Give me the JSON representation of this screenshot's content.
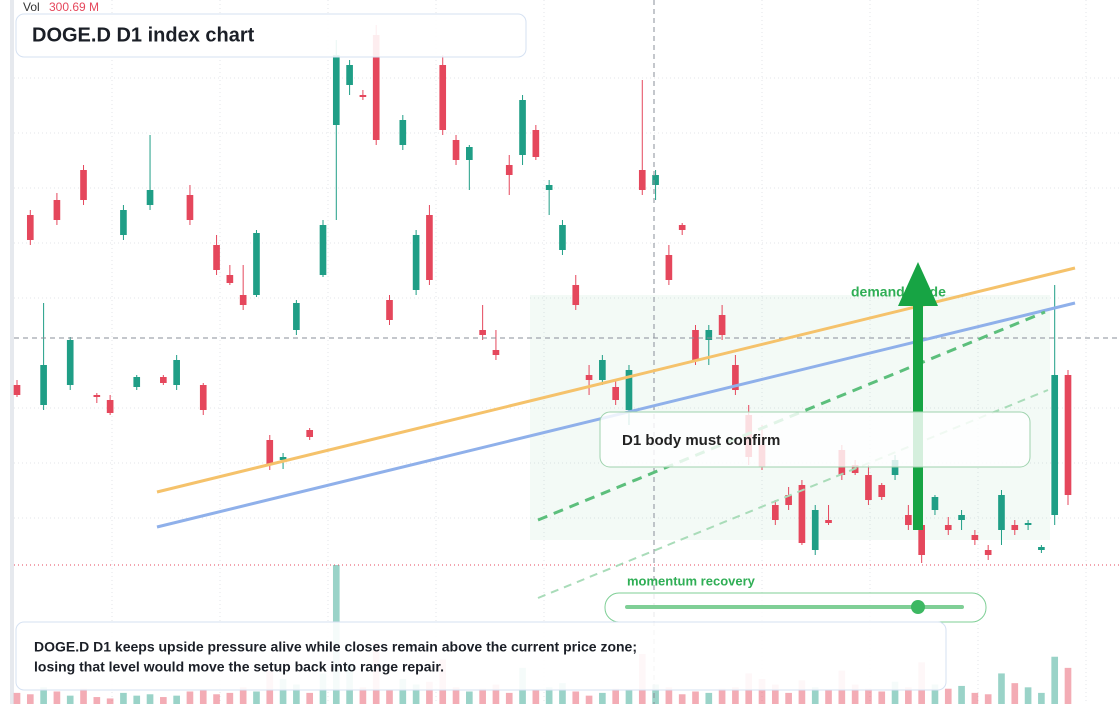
{
  "chart_data": {
    "type": "candlestick",
    "title": "DOGE.D D1 index chart",
    "volume_readout": {
      "label": "Vol",
      "value": "300.69 M"
    },
    "up_color": "#1f9e86",
    "down_color": "#e5475c",
    "ylim": [
      0,
      565
    ],
    "volume_lim": [
      0,
      500
    ],
    "open": [
      180,
      350,
      160,
      365,
      180,
      395,
      170,
      165,
      330,
      178,
      360,
      188,
      180,
      370,
      180,
      320,
      290,
      270,
      270,
      125,
      105,
      235,
      135,
      290,
      440,
      480,
      470,
      530,
      265,
      420,
      275,
      350,
      500,
      425,
      405,
      235,
      215,
      400,
      410,
      435,
      375,
      315,
      280,
      190,
      185,
      178,
      155,
      395,
      380,
      310,
      340,
      235,
      225,
      250,
      200,
      150,
      120,
      60,
      70,
      80,
      15,
      45,
      115,
      100,
      90,
      80,
      90,
      50,
      40,
      55,
      40,
      45,
      30,
      15,
      35,
      40,
      40,
      15,
      50,
      190
    ],
    "high": [
      185,
      355,
      262,
      372,
      228,
      400,
      172,
      170,
      360,
      190,
      430,
      190,
      210,
      380,
      182,
      330,
      300,
      300,
      335,
      130,
      112,
      265,
      137,
      345,
      525,
      505,
      475,
      540,
      270,
      450,
      335,
      360,
      510,
      430,
      420,
      260,
      235,
      410,
      470,
      440,
      385,
      345,
      290,
      200,
      210,
      185,
      200,
      485,
      395,
      320,
      342,
      240,
      240,
      260,
      210,
      160,
      140,
      65,
      78,
      85,
      60,
      60,
      120,
      105,
      100,
      82,
      110,
      60,
      45,
      70,
      48,
      55,
      35,
      20,
      75,
      45,
      45,
      20,
      280,
      195
    ],
    "low": [
      168,
      320,
      155,
      340,
      175,
      360,
      162,
      150,
      325,
      175,
      355,
      180,
      175,
      340,
      150,
      290,
      280,
      255,
      268,
      95,
      96,
      230,
      125,
      288,
      345,
      470,
      465,
      420,
      240,
      415,
      270,
      280,
      430,
      400,
      375,
      225,
      205,
      370,
      400,
      405,
      350,
      310,
      255,
      170,
      180,
      160,
      140,
      370,
      365,
      280,
      330,
      200,
      200,
      225,
      170,
      100,
      95,
      40,
      55,
      20,
      10,
      40,
      85,
      90,
      60,
      65,
      85,
      35,
      2,
      50,
      30,
      35,
      20,
      5,
      20,
      30,
      35,
      12,
      40,
      60
    ],
    "close": [
      170,
      325,
      200,
      345,
      225,
      365,
      168,
      152,
      355,
      188,
      375,
      182,
      205,
      345,
      155,
      295,
      282,
      260,
      332,
      100,
      108,
      262,
      128,
      340,
      510,
      500,
      468,
      425,
      245,
      445,
      330,
      285,
      435,
      405,
      418,
      230,
      210,
      390,
      465,
      408,
      380,
      340,
      260,
      185,
      205,
      165,
      195,
      375,
      390,
      285,
      335,
      205,
      235,
      230,
      175,
      108,
      98,
      45,
      60,
      22,
      55,
      42,
      90,
      92,
      65,
      68,
      105,
      40,
      10,
      68,
      35,
      50,
      25,
      10,
      70,
      35,
      42,
      18,
      190,
      70
    ],
    "volume": [
      40,
      35,
      60,
      45,
      30,
      55,
      25,
      20,
      40,
      30,
      35,
      25,
      30,
      45,
      50,
      35,
      40,
      60,
      45,
      120,
      90,
      70,
      40,
      110,
      500,
      140,
      60,
      220,
      50,
      90,
      70,
      80,
      160,
      60,
      45,
      55,
      70,
      40,
      130,
      50,
      60,
      75,
      45,
      30,
      40,
      55,
      50,
      180,
      70,
      60,
      35,
      45,
      40,
      55,
      60,
      110,
      90,
      70,
      40,
      85,
      60,
      50,
      120,
      70,
      55,
      45,
      80,
      60,
      150,
      70,
      55,
      65,
      40,
      35,
      110,
      75,
      60,
      40,
      170,
      130
    ]
  },
  "annotations": {
    "demand_label": "demand guide",
    "confirm_label": "D1 body must confirm",
    "momentum_label": "momentum recovery",
    "note_line_1": "DOGE.D D1 keeps upside pressure alive while closes remain above the current price zone;",
    "note_line_2": "losing that level would move the setup back into range repair."
  }
}
